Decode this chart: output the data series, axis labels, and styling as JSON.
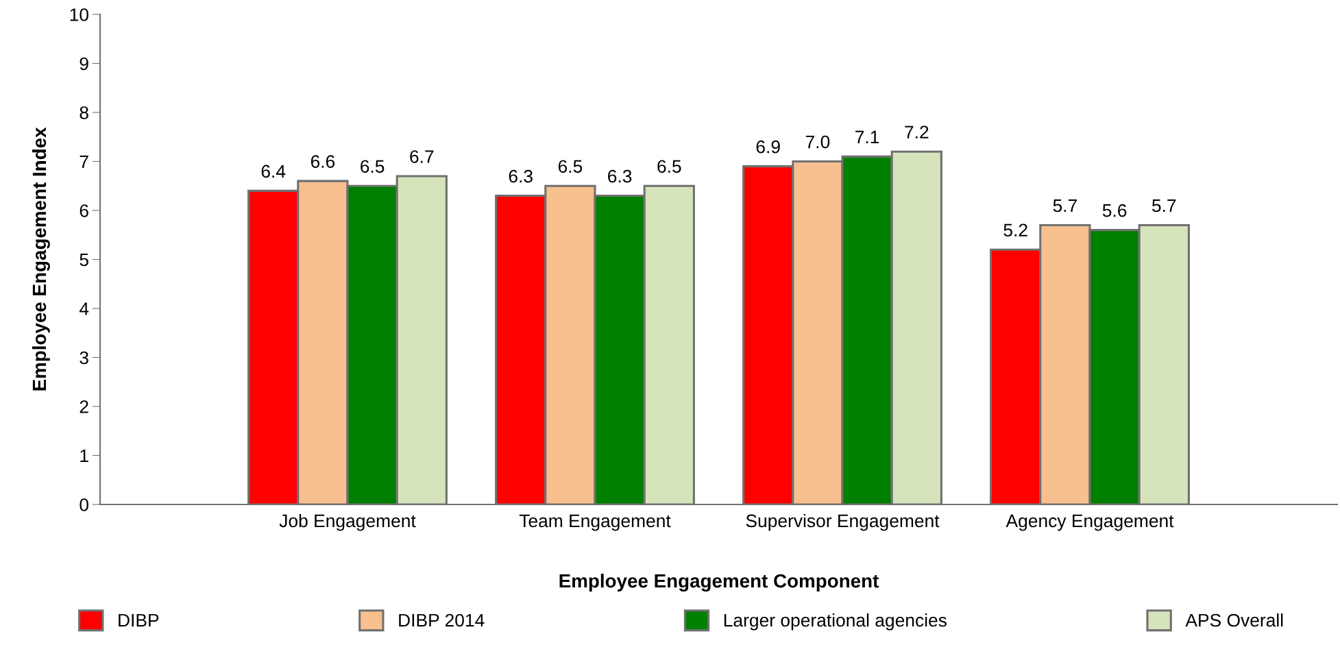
{
  "chart_data": {
    "type": "bar",
    "xlabel": "Employee Engagement Component",
    "ylabel": "Employee Engagement Index",
    "categories": [
      "Job Engagement",
      "Team Engagement",
      "Supervisor Engagement",
      "Agency Engagement"
    ],
    "series": [
      {
        "name": "DIBP",
        "color": "#ff0000",
        "values": [
          6.4,
          6.3,
          6.9,
          5.2
        ],
        "value_labels": [
          "6.4",
          "6.3",
          "6.9",
          "5.2"
        ]
      },
      {
        "name": "DIBP 2014",
        "color": "#f8bf8f",
        "values": [
          6.6,
          6.5,
          7.0,
          5.7
        ],
        "value_labels": [
          "6.6",
          "6.5",
          "7.0",
          "5.7"
        ]
      },
      {
        "name": "Larger operational agencies",
        "color": "#008000",
        "values": [
          6.5,
          6.3,
          7.1,
          5.6
        ],
        "value_labels": [
          "6.5",
          "6.3",
          "7.1",
          "5.6"
        ]
      },
      {
        "name": "APS Overall",
        "color": "#d6e4bc",
        "values": [
          6.7,
          6.5,
          7.2,
          5.7
        ],
        "value_labels": [
          "6.7",
          "6.5",
          "7.2",
          "5.7"
        ]
      }
    ],
    "ylim": [
      0,
      10
    ],
    "yticks": [
      0,
      1,
      2,
      3,
      4,
      5,
      6,
      7,
      8,
      9,
      10
    ],
    "grid": false,
    "legend": "bottom"
  }
}
